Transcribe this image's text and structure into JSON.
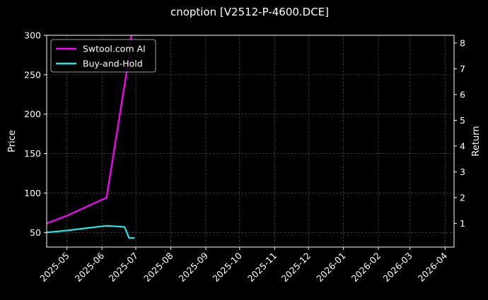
{
  "chart_data": {
    "type": "line",
    "title": "cnoption [V2512-P-4600.DCE]",
    "ylabel": "Price",
    "y2label": "Return",
    "ylim": [
      31.5,
      300
    ],
    "y2lim": [
      0.08,
      8.3
    ],
    "xlim": [
      "2025-04-13",
      "2026-04-09"
    ],
    "yticks": [
      50,
      100,
      150,
      200,
      250,
      300
    ],
    "y2ticks": [
      1,
      2,
      3,
      4,
      5,
      6,
      7,
      8
    ],
    "xticks": [
      "2025-05",
      "2025-06",
      "2025-07",
      "2025-08",
      "2025-09",
      "2025-10",
      "2025-11",
      "2025-12",
      "2026-01",
      "2026-02",
      "2026-03",
      "2026-04"
    ],
    "grid": true,
    "legend_position": "top-left",
    "series": [
      {
        "name": "Swtool.com AI",
        "color": "#ff00ff",
        "axis": "right",
        "x": [
          "2025-04-13",
          "2025-05-01",
          "2025-06-05",
          "2025-06-24",
          "2025-06-27"
        ],
        "values": [
          1.0,
          1.3,
          2.0,
          7.2,
          8.3
        ]
      },
      {
        "name": "Buy-and-Hold",
        "color": "#22e5e5",
        "axis": "left",
        "x": [
          "2025-04-13",
          "2025-05-01",
          "2025-06-05",
          "2025-06-21",
          "2025-06-25",
          "2025-06-30"
        ],
        "values": [
          50,
          52.5,
          58.5,
          57,
          43,
          43
        ]
      }
    ]
  }
}
